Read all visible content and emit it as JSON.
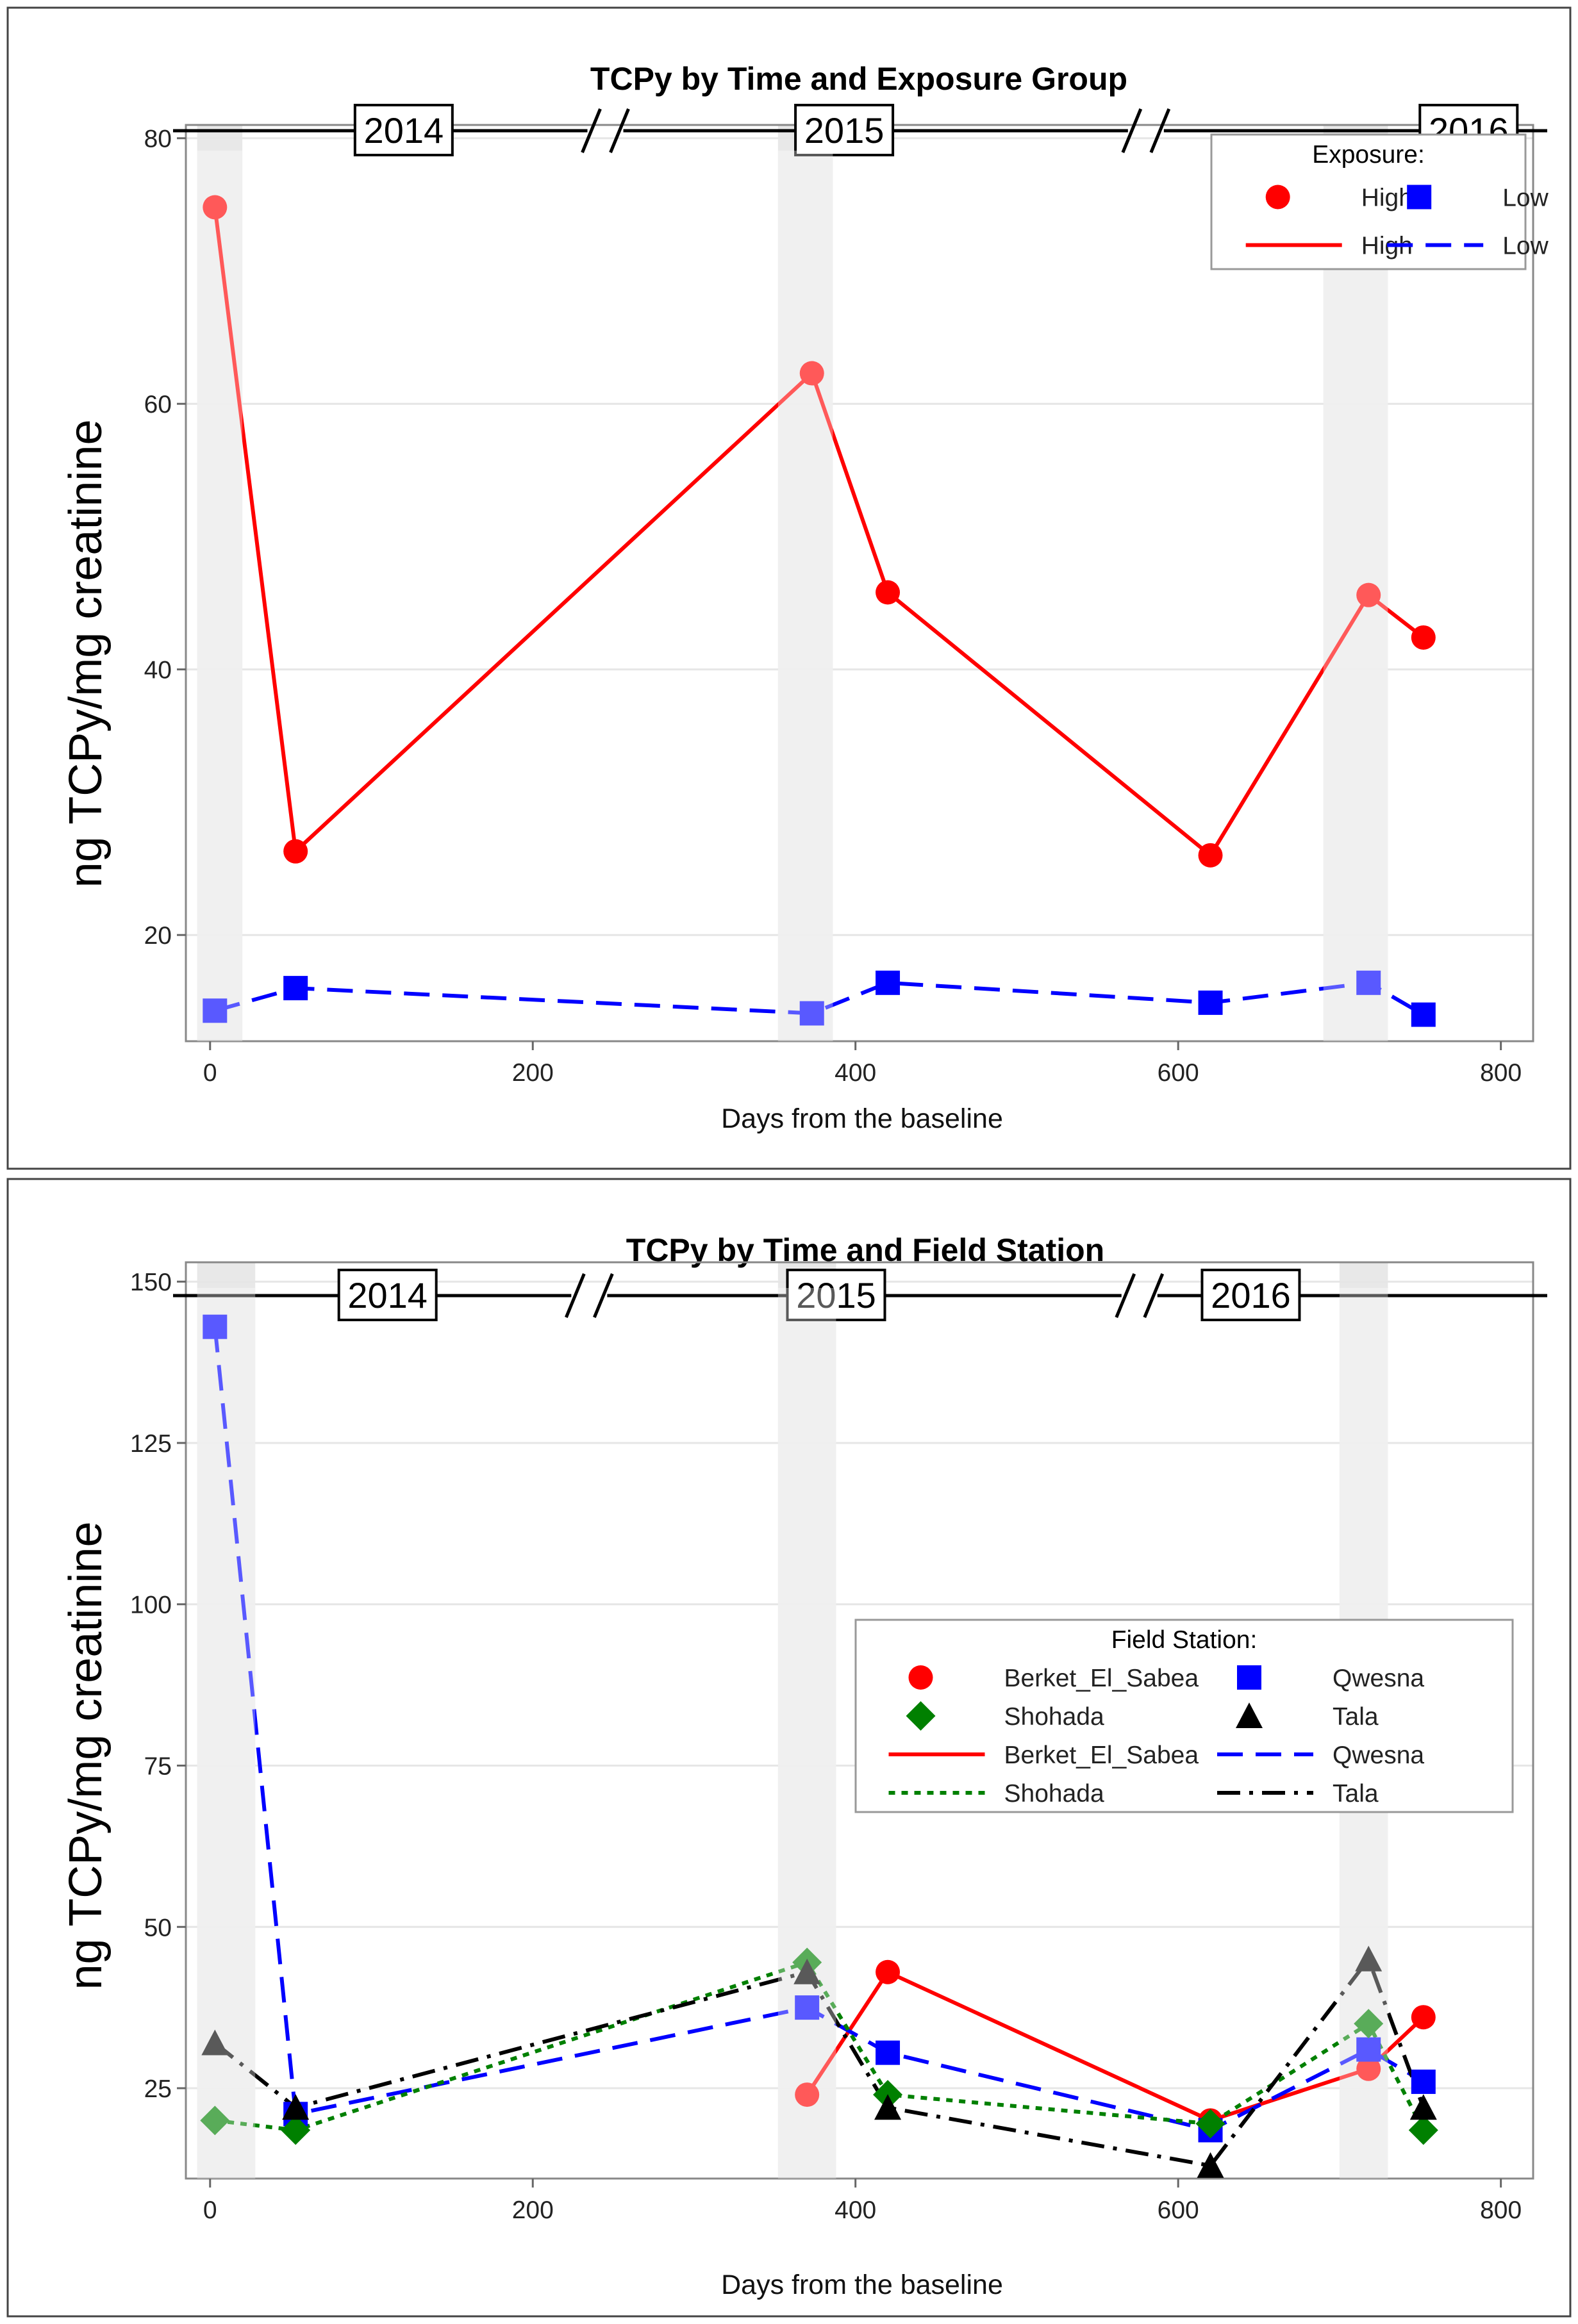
{
  "chart_data": [
    {
      "type": "line",
      "title": "TCPy by Time and Exposure Group",
      "xlabel": "Days from the baseline",
      "ylabel": "ng TCPy/mg creatinine",
      "xlim": [
        -15,
        820
      ],
      "ylim": [
        12,
        81
      ],
      "xticks": [
        0,
        200,
        400,
        600,
        800
      ],
      "yticks": [
        20,
        40,
        60,
        80
      ],
      "grid": true,
      "year_labels": [
        {
          "label": "2014",
          "day": 120
        },
        {
          "label": "2015",
          "day": 393
        },
        {
          "label": "2016",
          "day": 780
        }
      ],
      "axis_breaks": [
        245,
        580
      ],
      "shaded_bands": [
        [
          -8,
          20
        ],
        [
          352,
          386
        ],
        [
          690,
          730
        ]
      ],
      "legend": {
        "title": "Exposure:",
        "position": "top-right"
      },
      "series": [
        {
          "name": "High",
          "color": "#ff0000",
          "marker": "circle",
          "dash": "solid",
          "x": [
            3,
            53,
            373,
            420,
            620,
            718,
            752
          ],
          "y": [
            74.8,
            26.3,
            62.3,
            45.8,
            26.0,
            45.6,
            42.4
          ]
        },
        {
          "name": "Low",
          "color": "#0000ff",
          "marker": "square",
          "dash": "dashed",
          "x": [
            3,
            53,
            373,
            420,
            620,
            718,
            752
          ],
          "y": [
            14.3,
            16.0,
            14.1,
            16.4,
            14.9,
            16.4,
            14.0
          ]
        }
      ]
    },
    {
      "type": "line",
      "title": "TCPy by Time and Field Station",
      "xlabel": "Days from the baseline",
      "ylabel": "ng TCPy/mg creatinine",
      "xlim": [
        -15,
        820
      ],
      "ylim": [
        11,
        153
      ],
      "xticks": [
        0,
        200,
        400,
        600,
        800
      ],
      "yticks": [
        25,
        50,
        75,
        100,
        125,
        150
      ],
      "grid": true,
      "year_labels": [
        {
          "label": "2014",
          "day": 110
        },
        {
          "label": "2015",
          "day": 388
        },
        {
          "label": "2016",
          "day": 645
        }
      ],
      "axis_breaks": [
        235,
        576
      ],
      "shaded_bands": [
        [
          -8,
          28
        ],
        [
          352,
          388
        ],
        [
          700,
          730
        ]
      ],
      "legend": {
        "title": "Field Station:",
        "position": "right"
      },
      "series": [
        {
          "name": "Berket_El_Sabea",
          "color": "#ff0000",
          "marker": "circle",
          "dash": "solid",
          "x": [
            370,
            420,
            620,
            718,
            752
          ],
          "y": [
            24,
            43,
            20,
            28,
            36
          ]
        },
        {
          "name": "Qwesna",
          "color": "#0000ff",
          "marker": "square",
          "dash": "dashed",
          "x": [
            3,
            53,
            370,
            420,
            620,
            718,
            752
          ],
          "y": [
            143,
            21,
            37.5,
            30.5,
            18.5,
            31,
            26
          ]
        },
        {
          "name": "Shohada",
          "color": "#008000",
          "marker": "diamond",
          "dash": "dotted",
          "x": [
            3,
            53,
            370,
            420,
            620,
            718,
            752
          ],
          "y": [
            20,
            18.5,
            44.5,
            24,
            19.5,
            35,
            18.5
          ]
        },
        {
          "name": "Tala",
          "color": "#000000",
          "marker": "triangle",
          "dash": "dashdot",
          "x": [
            3,
            53,
            370,
            420,
            620,
            718,
            752
          ],
          "y": [
            32,
            22,
            43,
            22,
            13,
            45,
            22
          ]
        }
      ]
    }
  ]
}
